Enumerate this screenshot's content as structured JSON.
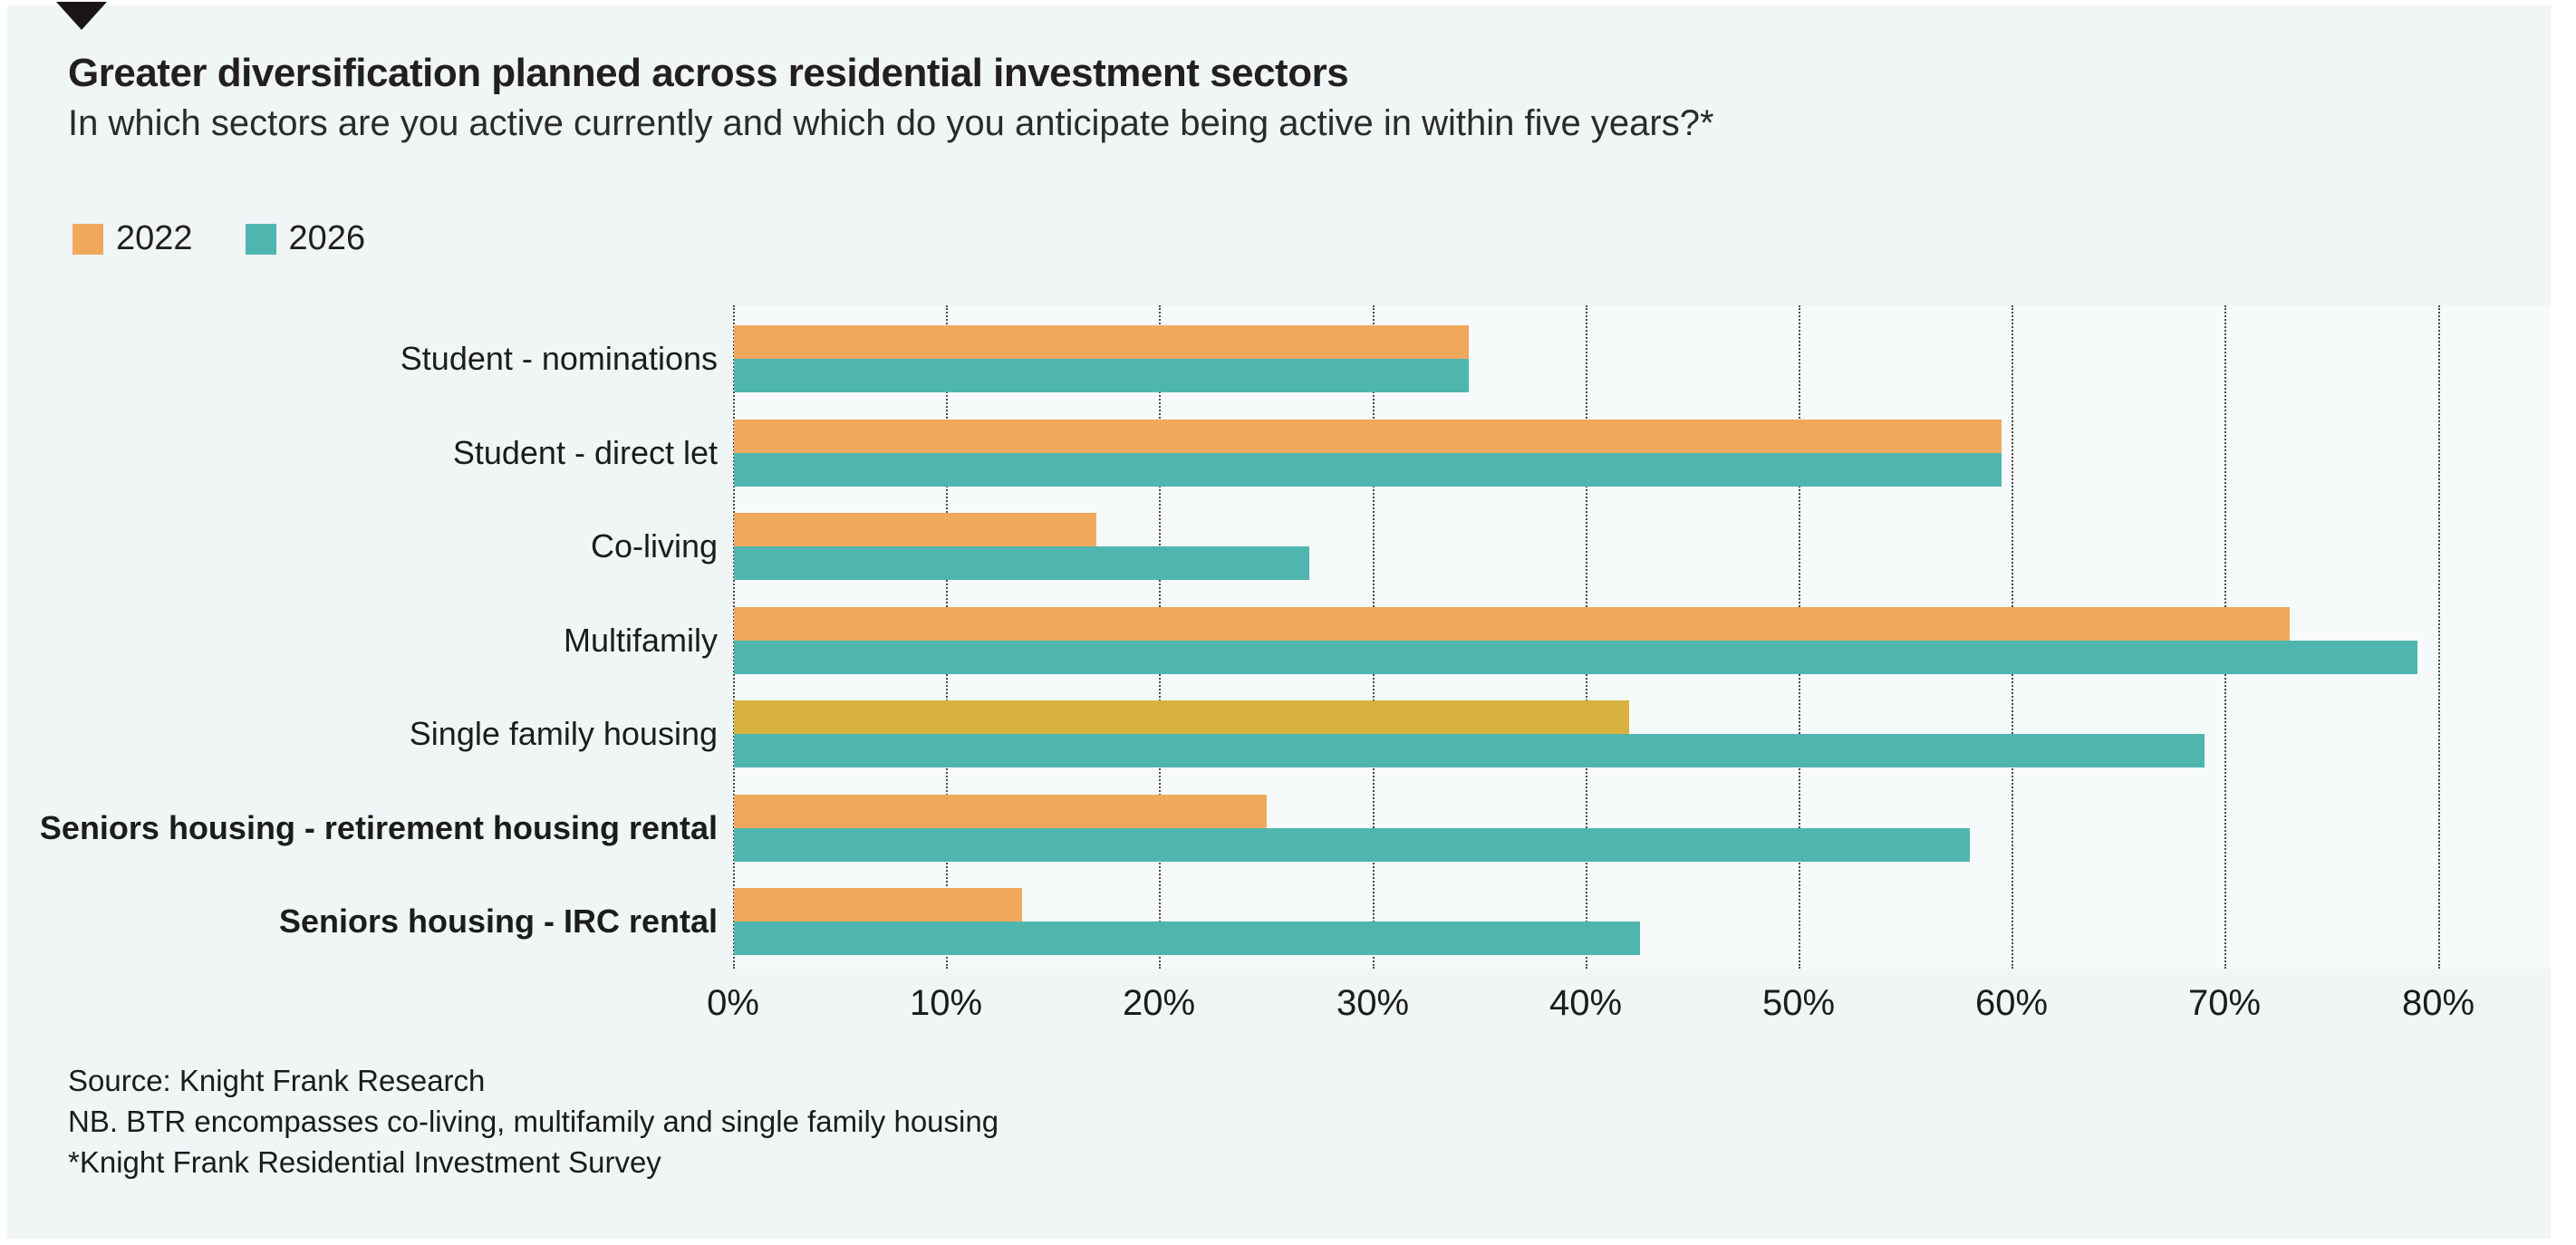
{
  "header": {
    "title": "Greater diversification planned across residential investment sectors",
    "subtitle": "In which sectors are you active currently and which do you anticipate being active in within five years?*"
  },
  "colors": {
    "page_background": "#F0F5F6",
    "plot_background": "#F6FAFA",
    "bar_2022": "#F0A95C",
    "bar_2026": "#4FB6AF",
    "bar_2022_single_family": "#D8B23E",
    "text": "#231F20",
    "gridline": "#2C2C2C",
    "marker_triangle": "#1A1414"
  },
  "chart_data": {
    "type": "bar",
    "orientation": "horizontal",
    "title": "Greater diversification planned across residential investment sectors",
    "subtitle": "In which sectors are you active currently and which do you anticipate being active in within five years?*",
    "legend": [
      {
        "label": "2022",
        "color": "#F0A95C"
      },
      {
        "label": "2026",
        "color": "#4FB6AF"
      }
    ],
    "legend_position": "top-left",
    "grid": "vertical-dotted",
    "xlim": [
      0,
      80
    ],
    "x_ticks": [
      "0%",
      "10%",
      "20%",
      "30%",
      "40%",
      "50%",
      "60%",
      "70%",
      "80%"
    ],
    "x_tick_values": [
      0,
      10,
      20,
      30,
      40,
      50,
      60,
      70,
      80
    ],
    "categories": [
      "Student - nominations",
      "Student - direct let",
      "Co-living",
      "Multifamily",
      "Single family housing",
      "Seniors housing - retirement housing rental",
      "Seniors housing - IRC rental"
    ],
    "series": [
      {
        "name": "2022",
        "values": [
          34.5,
          59.5,
          17,
          73,
          42,
          25,
          13.5
        ]
      },
      {
        "name": "2026",
        "values": [
          34.5,
          59.5,
          27,
          79,
          69,
          58,
          42.5
        ]
      }
    ],
    "rows": [
      {
        "label": "Student - nominations",
        "v2022": 34.5,
        "v2026": 34.5,
        "bold": false
      },
      {
        "label": "Student - direct let",
        "v2022": 59.5,
        "v2026": 59.5,
        "bold": false
      },
      {
        "label": "Co-living",
        "v2022": 17,
        "v2026": 27,
        "bold": false
      },
      {
        "label": "Multifamily",
        "v2022": 73,
        "v2026": 79,
        "bold": false
      },
      {
        "label": "Single family housing",
        "v2022": 42,
        "v2026": 69,
        "bold": false,
        "color_2022": "#D8B23E"
      },
      {
        "label": "Seniors housing - retirement housing rental",
        "v2022": 25,
        "v2026": 58,
        "bold": true
      },
      {
        "label": "Seniors housing - IRC rental",
        "v2022": 13.5,
        "v2026": 42.5,
        "bold": true
      }
    ]
  },
  "footer": {
    "source": "Source: Knight Frank Research",
    "note": "NB. BTR encompasses co-living, multifamily and single family housing",
    "footnote": "*Knight Frank Residential Investment Survey"
  }
}
